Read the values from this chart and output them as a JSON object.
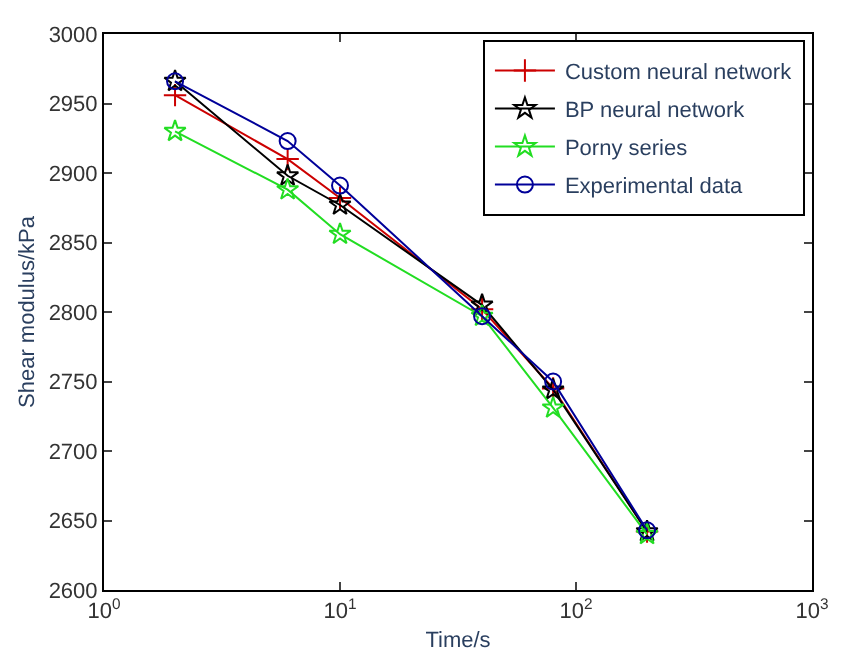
{
  "chart_data": {
    "type": "line",
    "xlabel": "Time/s",
    "ylabel": "Shear modulus/kPa",
    "x": [
      2,
      6,
      10,
      40,
      80,
      200
    ],
    "series": [
      {
        "name": "Custom neural network",
        "color": "#cc0000",
        "marker": "cross",
        "values": [
          2956,
          2910,
          2882,
          2802,
          2745,
          2642
        ]
      },
      {
        "name": "BP neural network",
        "color": "#000000",
        "marker": "star",
        "values": [
          2966,
          2898,
          2877,
          2805,
          2744,
          2642
        ]
      },
      {
        "name": "Porny series",
        "color": "#22dd22",
        "marker": "star",
        "values": [
          2930,
          2888,
          2856,
          2797,
          2731,
          2640
        ]
      },
      {
        "name": "Experimental data",
        "color": "#000099",
        "marker": "circle",
        "values": [
          2966,
          2923,
          2891,
          2797,
          2750,
          2643
        ]
      }
    ],
    "log": "x",
    "xlim": [
      1,
      1000
    ],
    "xticks": [
      {
        "value": 1,
        "label": "10$^{0}$"
      },
      {
        "value": 10,
        "label": "10$^{1}$"
      },
      {
        "value": 100,
        "label": "10$^{2}$"
      },
      {
        "value": 1000,
        "label": "10$^{3}$"
      }
    ],
    "ylim": [
      2600,
      3000
    ],
    "yticks": [
      2600,
      2650,
      2700,
      2750,
      2800,
      2850,
      2900,
      2950,
      3000
    ],
    "legend": "top right"
  }
}
